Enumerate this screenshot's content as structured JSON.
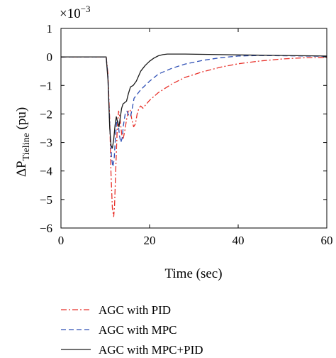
{
  "chart_data": {
    "type": "line",
    "exponent_base": "×10",
    "exponent_power": "−3",
    "xlabel": "Time (sec)",
    "ylabel_main": "ΔP",
    "ylabel_sub": "Tieline",
    "ylabel_unit": " (pu)",
    "xlim": [
      0,
      60
    ],
    "ylim": [
      -6,
      1
    ],
    "xticks": [
      {
        "value": 0,
        "label": "0"
      },
      {
        "value": 20,
        "label": "20"
      },
      {
        "value": 40,
        "label": "40"
      },
      {
        "value": 60,
        "label": "60"
      }
    ],
    "yticks": [
      {
        "value": 1,
        "label": "1"
      },
      {
        "value": 0,
        "label": "0"
      },
      {
        "value": -1,
        "label": "−1"
      },
      {
        "value": -2,
        "label": "−2"
      },
      {
        "value": -3,
        "label": "−3"
      },
      {
        "value": -4,
        "label": "−4"
      },
      {
        "value": -5,
        "label": "−5"
      },
      {
        "value": -6,
        "label": "−6"
      }
    ],
    "grid": false,
    "legend_position": "bottom",
    "series": [
      {
        "name": "AGC with PID",
        "color": "#e8312a",
        "dash": "dashdot",
        "points": [
          [
            0,
            0
          ],
          [
            10.2,
            0
          ],
          [
            10.6,
            -0.6
          ],
          [
            11,
            -2.2
          ],
          [
            11.3,
            -4.1
          ],
          [
            11.6,
            -5.3
          ],
          [
            11.9,
            -5.6
          ],
          [
            12.1,
            -5.2
          ],
          [
            12.4,
            -3.8
          ],
          [
            12.7,
            -2.5
          ],
          [
            13,
            -1.9
          ],
          [
            13.3,
            -2.1
          ],
          [
            13.7,
            -2.7
          ],
          [
            14,
            -2.9
          ],
          [
            14.4,
            -2.6
          ],
          [
            14.8,
            -2.2
          ],
          [
            15.2,
            -1.9
          ],
          [
            15.6,
            -1.85
          ],
          [
            16,
            -2.2
          ],
          [
            16.4,
            -2.45
          ],
          [
            16.8,
            -2.35
          ],
          [
            17.2,
            -2.0
          ],
          [
            17.6,
            -1.8
          ],
          [
            18,
            -1.72
          ],
          [
            18.5,
            -1.8
          ],
          [
            19,
            -1.7
          ],
          [
            20,
            -1.52
          ],
          [
            22,
            -1.25
          ],
          [
            25,
            -0.95
          ],
          [
            28,
            -0.72
          ],
          [
            32,
            -0.52
          ],
          [
            36,
            -0.36
          ],
          [
            40,
            -0.24
          ],
          [
            45,
            -0.14
          ],
          [
            50,
            -0.07
          ],
          [
            55,
            -0.03
          ],
          [
            60,
            -0.02
          ]
        ]
      },
      {
        "name": "AGC with MPC",
        "color": "#2e4fb5",
        "dash": "dashed",
        "points": [
          [
            0,
            0
          ],
          [
            10.2,
            0
          ],
          [
            10.6,
            -0.7
          ],
          [
            11,
            -2.4
          ],
          [
            11.4,
            -3.5
          ],
          [
            11.7,
            -3.85
          ],
          [
            12,
            -3.6
          ],
          [
            12.3,
            -2.8
          ],
          [
            12.6,
            -2.2
          ],
          [
            12.9,
            -2.3
          ],
          [
            13.2,
            -2.75
          ],
          [
            13.5,
            -3.0
          ],
          [
            13.8,
            -2.85
          ],
          [
            14.1,
            -2.4
          ],
          [
            14.5,
            -2.0
          ],
          [
            14.9,
            -1.9
          ],
          [
            15.3,
            -2.05
          ],
          [
            15.7,
            -2.1
          ],
          [
            16.1,
            -1.8
          ],
          [
            16.5,
            -1.45
          ],
          [
            17,
            -1.35
          ],
          [
            18,
            -1.15
          ],
          [
            20,
            -0.85
          ],
          [
            22,
            -0.6
          ],
          [
            25,
            -0.4
          ],
          [
            28,
            -0.25
          ],
          [
            32,
            -0.12
          ],
          [
            36,
            -0.03
          ],
          [
            40,
            0.03
          ],
          [
            45,
            0.05
          ],
          [
            50,
            0.04
          ],
          [
            55,
            0.03
          ],
          [
            60,
            0.02
          ]
        ]
      },
      {
        "name": "AGC with MPC+PID",
        "color": "#1a1a1a",
        "dash": "solid",
        "points": [
          [
            0,
            0
          ],
          [
            10.2,
            0
          ],
          [
            10.6,
            -0.8
          ],
          [
            11,
            -2.5
          ],
          [
            11.3,
            -3.1
          ],
          [
            11.6,
            -3.2
          ],
          [
            11.9,
            -2.9
          ],
          [
            12.2,
            -2.4
          ],
          [
            12.5,
            -2.1
          ],
          [
            12.8,
            -2.3
          ],
          [
            13.1,
            -2.45
          ],
          [
            13.4,
            -2.1
          ],
          [
            13.7,
            -1.8
          ],
          [
            14,
            -1.65
          ],
          [
            14.4,
            -1.6
          ],
          [
            14.8,
            -1.55
          ],
          [
            15.2,
            -1.3
          ],
          [
            15.7,
            -1.05
          ],
          [
            16.3,
            -1.0
          ],
          [
            17,
            -0.85
          ],
          [
            18,
            -0.5
          ],
          [
            19,
            -0.3
          ],
          [
            20,
            -0.15
          ],
          [
            21,
            -0.04
          ],
          [
            22,
            0.04
          ],
          [
            23,
            0.08
          ],
          [
            24,
            0.1
          ],
          [
            25,
            0.1
          ],
          [
            28,
            0.1
          ],
          [
            32,
            0.09
          ],
          [
            36,
            0.08
          ],
          [
            40,
            0.07
          ],
          [
            45,
            0.06
          ],
          [
            50,
            0.05
          ],
          [
            55,
            0.04
          ],
          [
            60,
            0.03
          ]
        ]
      }
    ]
  }
}
